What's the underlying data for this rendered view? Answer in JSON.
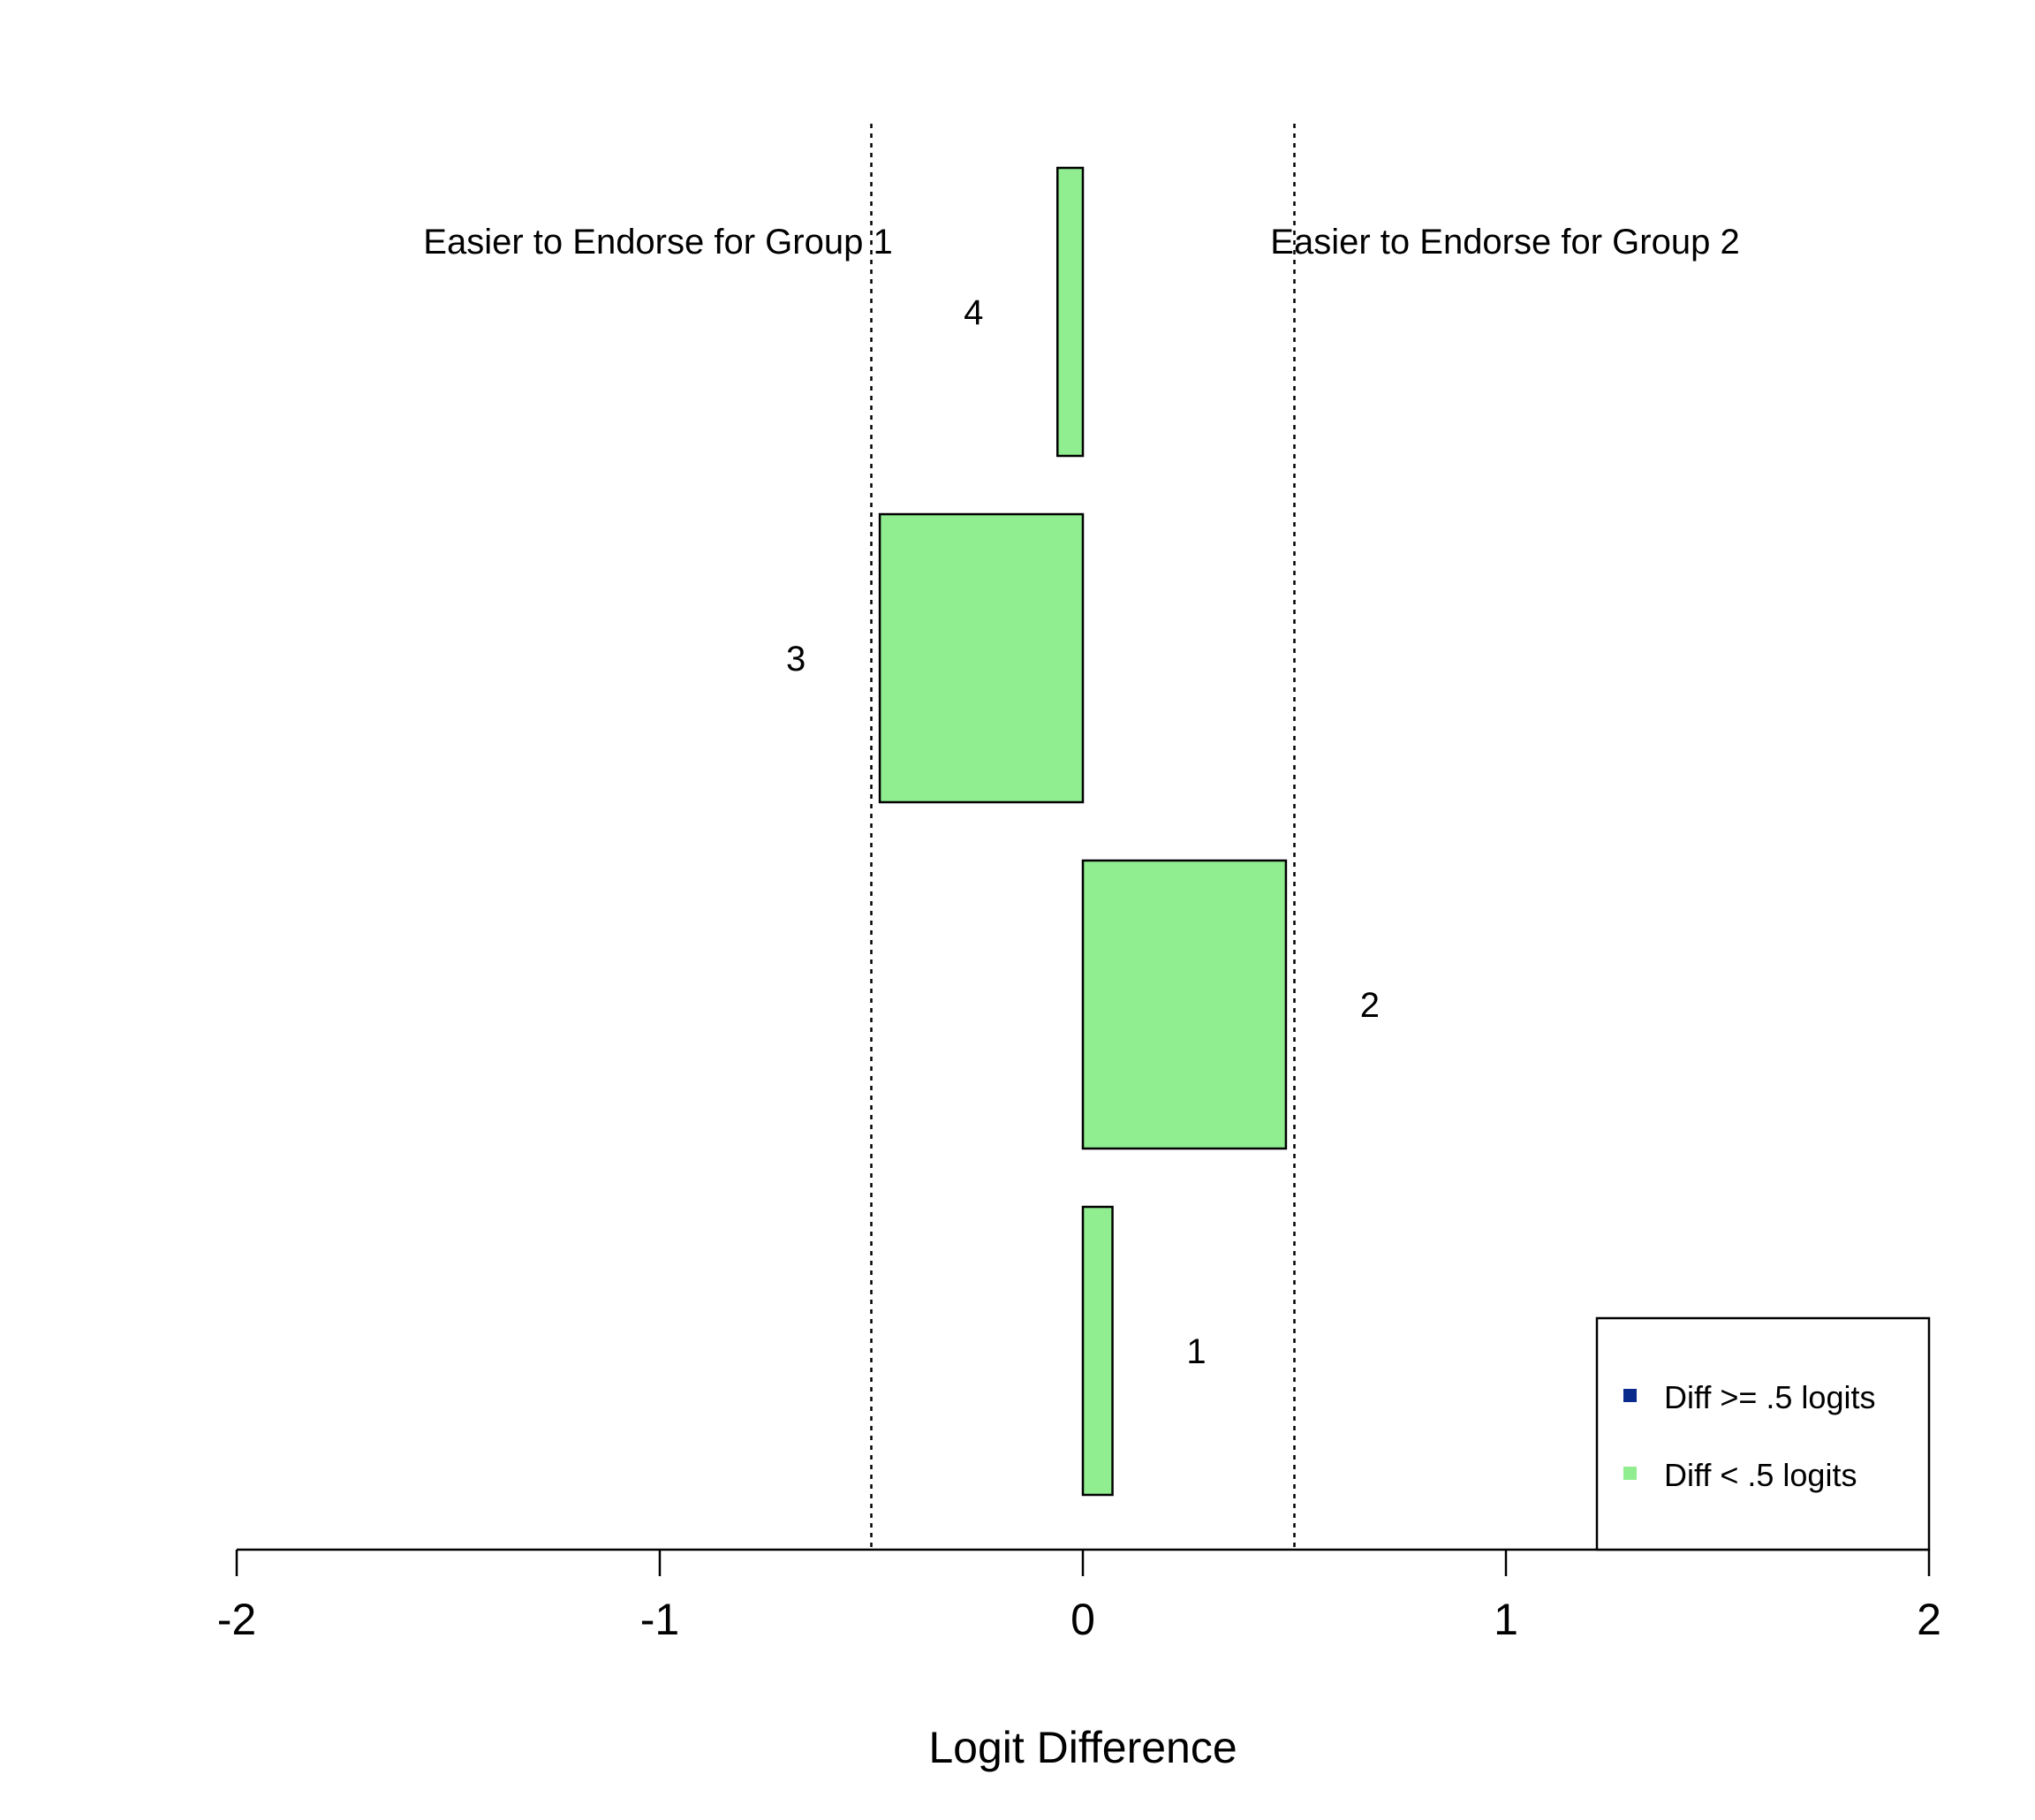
{
  "chart_data": {
    "type": "bar",
    "orientation": "horizontal",
    "xlabel": "Logit Difference",
    "xlim": [
      -2,
      2
    ],
    "x_ticks": [
      "-2",
      "-1",
      "0",
      "1",
      "2"
    ],
    "threshold": 0.5,
    "region_labels": {
      "left": "Easier to Endorse for Group 1",
      "right": "Easier to Endorse for Group 2"
    },
    "categories": [
      "1",
      "2",
      "3",
      "4"
    ],
    "values": [
      0.07,
      0.48,
      -0.48,
      -0.06
    ],
    "bar_colors": [
      "#90EE90",
      "#90EE90",
      "#90EE90",
      "#90EE90"
    ],
    "legend": {
      "placement": "bottom-right",
      "items": [
        {
          "label": "Diff >= .5 logits",
          "color": "#0A2A8C"
        },
        {
          "label": "Diff < .5 logits",
          "color": "#90EE90"
        }
      ]
    }
  }
}
